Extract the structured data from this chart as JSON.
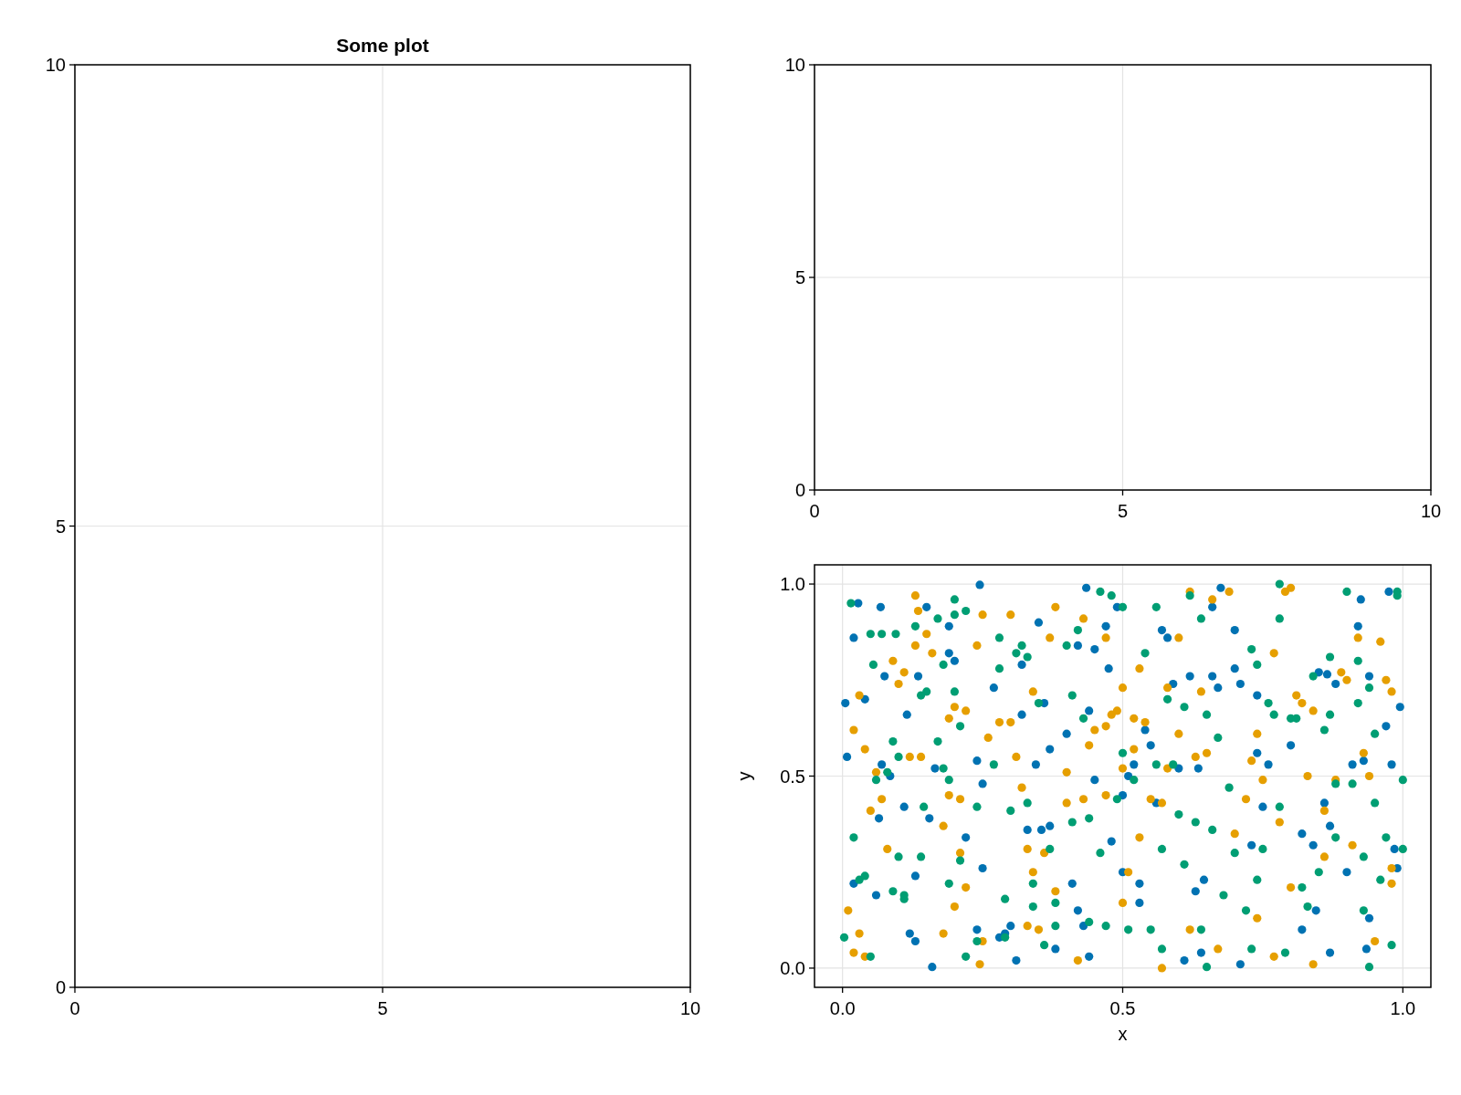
{
  "chart_data": [
    {
      "type": "scatter",
      "title": "Some plot",
      "xlim": [
        0,
        10
      ],
      "ylim": [
        0,
        10
      ],
      "xticks": [
        0,
        5,
        10
      ],
      "yticks": [
        0,
        5,
        10
      ],
      "grid": true
    },
    {
      "type": "scatter",
      "xlim": [
        0,
        10
      ],
      "ylim": [
        0,
        10
      ],
      "xticks": [
        0,
        5,
        10
      ],
      "yticks": [
        0,
        5,
        10
      ],
      "grid": true
    },
    {
      "type": "scatter",
      "xlabel": "x",
      "ylabel": "y",
      "xlim": [
        -0.05,
        1.05
      ],
      "ylim": [
        -0.05,
        1.05
      ],
      "xticks": [
        {
          "value": 0,
          "label": "0.0"
        },
        {
          "value": 0.5,
          "label": "0.5"
        },
        {
          "value": 1,
          "label": "1.0"
        }
      ],
      "yticks": [
        {
          "value": 0,
          "label": "0.0"
        },
        {
          "value": 0.5,
          "label": "0.5"
        },
        {
          "value": 1,
          "label": "1.0"
        }
      ],
      "grid": true,
      "marker": "circle",
      "series": [
        {
          "color": "#0072b2",
          "x": [
            0.005,
            0.008,
            0.02,
            0.028,
            0.02,
            0.04,
            0.068,
            0.065,
            0.06,
            0.07,
            0.075,
            0.085,
            0.11,
            0.115,
            0.12,
            0.13,
            0.13,
            0.135,
            0.15,
            0.155,
            0.16,
            0.165,
            0.19,
            0.19,
            0.2,
            0.22,
            0.24,
            0.24,
            0.245,
            0.25,
            0.25,
            0.27,
            0.28,
            0.29,
            0.3,
            0.31,
            0.32,
            0.32,
            0.33,
            0.345,
            0.35,
            0.355,
            0.36,
            0.37,
            0.37,
            0.38,
            0.4,
            0.41,
            0.42,
            0.42,
            0.43,
            0.435,
            0.44,
            0.44,
            0.45,
            0.45,
            0.47,
            0.475,
            0.48,
            0.49,
            0.5,
            0.5,
            0.51,
            0.52,
            0.53,
            0.53,
            0.54,
            0.55,
            0.56,
            0.57,
            0.58,
            0.59,
            0.6,
            0.61,
            0.62,
            0.63,
            0.635,
            0.64,
            0.645,
            0.66,
            0.66,
            0.67,
            0.675,
            0.7,
            0.7,
            0.71,
            0.71,
            0.73,
            0.74,
            0.74,
            0.75,
            0.76,
            0.8,
            0.82,
            0.82,
            0.84,
            0.845,
            0.85,
            0.86,
            0.87,
            0.87,
            0.88,
            0.865,
            0.9,
            0.91,
            0.92,
            0.925,
            0.93,
            0.935,
            0.94,
            0.94,
            0.97,
            0.975,
            0.98,
            0.985,
            0.99,
            0.995
          ],
          "values": [
            0.69,
            0.55,
            0.86,
            0.95,
            0.22,
            0.7,
            0.94,
            0.39,
            0.19,
            0.53,
            0.76,
            0.5,
            0.42,
            0.66,
            0.09,
            0.07,
            0.24,
            0.76,
            0.94,
            0.39,
            0.003,
            0.52,
            0.82,
            0.89,
            0.8,
            0.34,
            0.54,
            0.1,
            0.998,
            0.26,
            0.48,
            0.73,
            0.08,
            0.09,
            0.11,
            0.02,
            0.79,
            0.66,
            0.36,
            0.53,
            0.9,
            0.36,
            0.69,
            0.57,
            0.37,
            0.05,
            0.61,
            0.22,
            0.84,
            0.15,
            0.11,
            0.99,
            0.03,
            0.67,
            0.83,
            0.49,
            0.89,
            0.78,
            0.33,
            0.94,
            0.45,
            0.25,
            0.5,
            0.53,
            0.22,
            0.17,
            0.62,
            0.58,
            0.43,
            0.88,
            0.86,
            0.74,
            0.52,
            0.02,
            0.76,
            0.2,
            0.52,
            0.04,
            0.23,
            0.76,
            0.94,
            0.73,
            0.99,
            0.78,
            0.88,
            0.74,
            0.01,
            0.32,
            0.71,
            0.56,
            0.42,
            0.53,
            0.58,
            0.35,
            0.1,
            0.32,
            0.15,
            0.77,
            0.43,
            0.37,
            0.04,
            0.74,
            0.765,
            0.25,
            0.53,
            0.89,
            0.96,
            0.54,
            0.05,
            0.13,
            0.76,
            0.63,
            0.98,
            0.53,
            0.31,
            0.26,
            0.68
          ]
        },
        {
          "color": "#e69f00",
          "x": [
            0.01,
            0.02,
            0.02,
            0.03,
            0.03,
            0.04,
            0.04,
            0.05,
            0.06,
            0.07,
            0.08,
            0.09,
            0.1,
            0.11,
            0.12,
            0.13,
            0.13,
            0.135,
            0.14,
            0.15,
            0.16,
            0.18,
            0.18,
            0.19,
            0.19,
            0.2,
            0.2,
            0.21,
            0.21,
            0.22,
            0.22,
            0.24,
            0.245,
            0.25,
            0.25,
            0.26,
            0.28,
            0.3,
            0.3,
            0.31,
            0.32,
            0.33,
            0.33,
            0.34,
            0.34,
            0.35,
            0.36,
            0.37,
            0.38,
            0.38,
            0.4,
            0.4,
            0.42,
            0.43,
            0.43,
            0.44,
            0.45,
            0.47,
            0.47,
            0.47,
            0.48,
            0.49,
            0.5,
            0.5,
            0.5,
            0.51,
            0.52,
            0.52,
            0.53,
            0.53,
            0.54,
            0.55,
            0.57,
            0.57,
            0.58,
            0.58,
            0.6,
            0.6,
            0.62,
            0.62,
            0.63,
            0.64,
            0.65,
            0.66,
            0.67,
            0.69,
            0.7,
            0.72,
            0.73,
            0.74,
            0.74,
            0.75,
            0.77,
            0.77,
            0.78,
            0.79,
            0.8,
            0.8,
            0.81,
            0.82,
            0.83,
            0.84,
            0.84,
            0.86,
            0.86,
            0.88,
            0.89,
            0.9,
            0.91,
            0.92,
            0.93,
            0.94,
            0.95,
            0.96,
            0.97,
            0.98,
            0.98,
            0.98
          ],
          "values": [
            0.15,
            0.62,
            0.04,
            0.71,
            0.09,
            0.03,
            0.57,
            0.41,
            0.51,
            0.44,
            0.31,
            0.8,
            0.74,
            0.77,
            0.55,
            0.97,
            0.84,
            0.93,
            0.55,
            0.87,
            0.82,
            0.09,
            0.37,
            0.65,
            0.45,
            0.68,
            0.16,
            0.3,
            0.44,
            0.21,
            0.67,
            0.84,
            0.01,
            0.92,
            0.07,
            0.6,
            0.64,
            0.92,
            0.64,
            0.55,
            0.47,
            0.11,
            0.31,
            0.72,
            0.25,
            0.1,
            0.3,
            0.86,
            0.94,
            0.2,
            0.43,
            0.51,
            0.02,
            0.44,
            0.91,
            0.58,
            0.62,
            0.86,
            0.63,
            0.45,
            0.66,
            0.67,
            0.52,
            0.73,
            0.17,
            0.25,
            0.57,
            0.65,
            0.34,
            0.78,
            0.64,
            0.44,
            0.43,
            0.0,
            0.73,
            0.52,
            0.61,
            0.86,
            0.98,
            0.1,
            0.55,
            0.72,
            0.56,
            0.96,
            0.05,
            0.98,
            0.35,
            0.44,
            0.54,
            0.61,
            0.13,
            0.49,
            0.03,
            0.82,
            0.38,
            0.98,
            0.99,
            0.21,
            0.71,
            0.69,
            0.5,
            0.67,
            0.01,
            0.41,
            0.29,
            0.49,
            0.77,
            0.75,
            0.32,
            0.86,
            0.56,
            0.5,
            0.07,
            0.85,
            0.75,
            0.26,
            0.22,
            0.72
          ]
        },
        {
          "color": "#009e73",
          "x": [
            0.003,
            0.015,
            0.02,
            0.03,
            0.04,
            0.05,
            0.05,
            0.055,
            0.06,
            0.07,
            0.08,
            0.09,
            0.09,
            0.095,
            0.1,
            0.1,
            0.11,
            0.11,
            0.13,
            0.14,
            0.14,
            0.145,
            0.15,
            0.17,
            0.17,
            0.18,
            0.18,
            0.19,
            0.19,
            0.2,
            0.2,
            0.2,
            0.21,
            0.21,
            0.22,
            0.22,
            0.24,
            0.24,
            0.27,
            0.28,
            0.28,
            0.29,
            0.29,
            0.3,
            0.31,
            0.32,
            0.33,
            0.33,
            0.34,
            0.34,
            0.35,
            0.36,
            0.37,
            0.38,
            0.38,
            0.4,
            0.41,
            0.41,
            0.42,
            0.43,
            0.44,
            0.44,
            0.46,
            0.46,
            0.47,
            0.48,
            0.49,
            0.5,
            0.5,
            0.51,
            0.52,
            0.54,
            0.55,
            0.56,
            0.56,
            0.57,
            0.57,
            0.58,
            0.59,
            0.6,
            0.61,
            0.61,
            0.62,
            0.63,
            0.64,
            0.64,
            0.65,
            0.65,
            0.66,
            0.67,
            0.68,
            0.69,
            0.7,
            0.72,
            0.73,
            0.73,
            0.74,
            0.74,
            0.75,
            0.76,
            0.77,
            0.78,
            0.78,
            0.78,
            0.79,
            0.8,
            0.81,
            0.82,
            0.83,
            0.84,
            0.85,
            0.86,
            0.87,
            0.87,
            0.88,
            0.88,
            0.9,
            0.91,
            0.92,
            0.92,
            0.93,
            0.93,
            0.94,
            0.94,
            0.95,
            0.95,
            0.96,
            0.97,
            0.98,
            0.99,
            0.99,
            1.0,
            1.0
          ],
          "values": [
            0.08,
            0.95,
            0.34,
            0.23,
            0.24,
            0.03,
            0.87,
            0.79,
            0.49,
            0.87,
            0.51,
            0.2,
            0.59,
            0.87,
            0.29,
            0.55,
            0.19,
            0.18,
            0.89,
            0.71,
            0.29,
            0.42,
            0.72,
            0.91,
            0.59,
            0.79,
            0.52,
            0.22,
            0.49,
            0.92,
            0.72,
            0.96,
            0.63,
            0.28,
            0.93,
            0.03,
            0.07,
            0.42,
            0.53,
            0.86,
            0.78,
            0.08,
            0.18,
            0.41,
            0.82,
            0.84,
            0.81,
            0.43,
            0.22,
            0.16,
            0.69,
            0.06,
            0.31,
            0.11,
            0.17,
            0.84,
            0.38,
            0.71,
            0.88,
            0.65,
            0.39,
            0.12,
            0.98,
            0.3,
            0.11,
            0.97,
            0.44,
            0.94,
            0.56,
            0.1,
            0.49,
            0.82,
            0.1,
            0.94,
            0.53,
            0.31,
            0.05,
            0.7,
            0.53,
            0.4,
            0.27,
            0.68,
            0.97,
            0.38,
            0.91,
            0.1,
            0.66,
            0.003,
            0.36,
            0.6,
            0.19,
            0.47,
            0.3,
            0.15,
            0.83,
            0.05,
            0.79,
            0.23,
            0.31,
            0.69,
            0.66,
            1.0,
            0.91,
            0.42,
            0.04,
            0.65,
            0.65,
            0.21,
            0.16,
            0.76,
            0.25,
            0.62,
            0.81,
            0.66,
            0.48,
            0.34,
            0.98,
            0.48,
            0.8,
            0.69,
            0.29,
            0.15,
            0.73,
            0.003,
            0.61,
            0.43,
            0.23,
            0.34,
            0.06,
            0.98,
            0.97,
            0.49,
            0.31
          ]
        }
      ]
    }
  ]
}
